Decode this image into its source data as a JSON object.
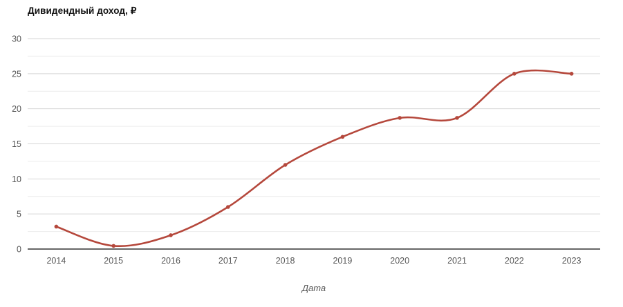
{
  "page": {
    "background": "#ffffff"
  },
  "chart_data": {
    "type": "line",
    "title": "Дивидендный доход, ₽",
    "xlabel": "Дата",
    "ylabel": "",
    "categories": [
      "2014",
      "2015",
      "2016",
      "2017",
      "2018",
      "2019",
      "2020",
      "2021",
      "2022",
      "2023"
    ],
    "series": [
      {
        "name": "Дивидендный доход, ₽",
        "values": [
          3.2,
          0.45,
          1.97,
          6,
          12,
          16,
          18.7,
          18.7,
          25,
          25
        ]
      }
    ],
    "ylim": [
      0,
      30
    ],
    "yticks": [
      0,
      5,
      10,
      15,
      20,
      25,
      30
    ],
    "minor_yticks": [
      2.5,
      7.5,
      12.5,
      17.5,
      22.5,
      27.5
    ],
    "grid": true,
    "legend_position": "none",
    "smooth": true,
    "markers": true,
    "colors": {
      "line": "#b5483c",
      "marker": "#b5483c",
      "major_gridline": "#d6d6d6",
      "minor_gridline": "#ececec",
      "baseline": "#333333",
      "tick_label": "#565656",
      "axis_title": "#555555",
      "title": "#111111"
    }
  }
}
